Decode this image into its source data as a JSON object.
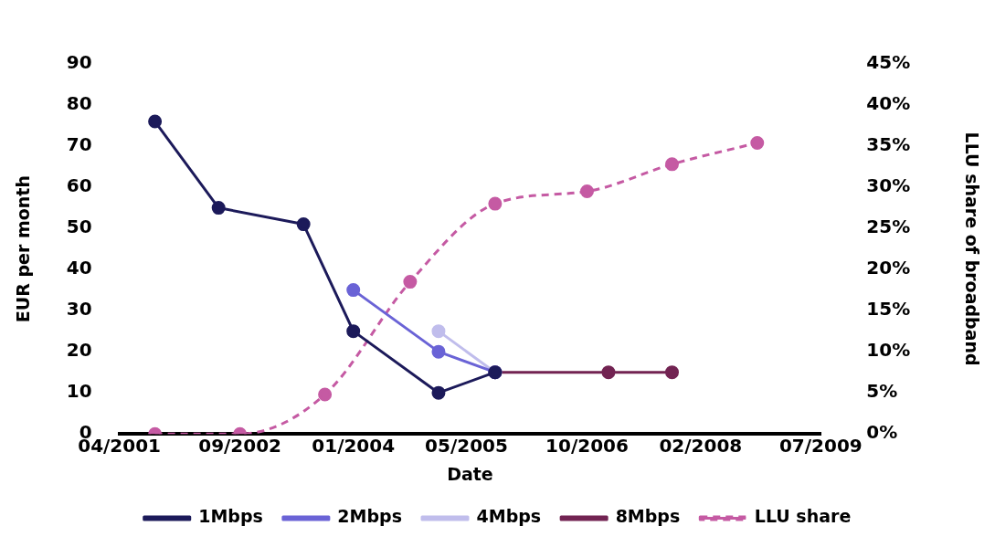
{
  "chart_data": {
    "type": "line",
    "xlabel": "Date",
    "ylabel": "EUR per month",
    "y2label": "LLU share of broadband",
    "xlim": [
      "2001-04",
      "2009-07"
    ],
    "xticks": [
      {
        "value": "2001-04",
        "label": "04/2001"
      },
      {
        "value": "2002-09",
        "label": "09/2002"
      },
      {
        "value": "2004-01",
        "label": "01/2004"
      },
      {
        "value": "2005-05",
        "label": "05/2005"
      },
      {
        "value": "2006-10",
        "label": "10/2006"
      },
      {
        "value": "2008-02",
        "label": "02/2008"
      },
      {
        "value": "2009-07",
        "label": "07/2009"
      }
    ],
    "ylim": [
      0,
      90
    ],
    "yticks": [
      0,
      10,
      20,
      30,
      40,
      50,
      60,
      70,
      80,
      90
    ],
    "y2lim": [
      0,
      45
    ],
    "y2ticks": [
      {
        "value": 0,
        "label": "0%"
      },
      {
        "value": 5,
        "label": "5%"
      },
      {
        "value": 10,
        "label": "10%"
      },
      {
        "value": 15,
        "label": "15%"
      },
      {
        "value": 20,
        "label": "20%"
      },
      {
        "value": 25,
        "label": "25%"
      },
      {
        "value": 30,
        "label": "30%"
      },
      {
        "value": 35,
        "label": "35%"
      },
      {
        "value": 40,
        "label": "40%"
      },
      {
        "value": 45,
        "label": "45%"
      }
    ],
    "grid": false,
    "legend": "bottom",
    "marker": "circle",
    "series": [
      {
        "name": "1Mbps",
        "color": "#1c1a5a",
        "x": [
          "2001-09",
          "2002-06",
          "2003-06",
          "2004-01",
          "2005-01",
          "2005-09"
        ],
        "values": [
          76,
          55,
          51,
          25,
          10,
          15
        ]
      },
      {
        "name": "2Mbps",
        "color": "#6a63d6",
        "x": [
          "2004-01",
          "2005-01",
          "2005-09"
        ],
        "values": [
          35,
          20,
          15
        ]
      },
      {
        "name": "4Mbps",
        "color": "#c0bdec",
        "x": [
          "2005-01",
          "2005-09"
        ],
        "values": [
          25,
          15
        ]
      },
      {
        "name": "8Mbps",
        "color": "#722352",
        "x": [
          "2005-09",
          "2007-01",
          "2007-10"
        ],
        "values": [
          15,
          15,
          15
        ]
      },
      {
        "name": "LLU share",
        "color": "#c55aa3",
        "axis": "y2",
        "line_style": "dashed",
        "x": [
          "2001-09",
          "2002-09",
          "2003-09",
          "2004-09",
          "2005-09",
          "2006-10",
          "2007-10",
          "2008-10"
        ],
        "values": [
          0,
          0,
          4.8,
          18.5,
          28,
          29.5,
          32.8,
          35.4
        ]
      }
    ]
  }
}
